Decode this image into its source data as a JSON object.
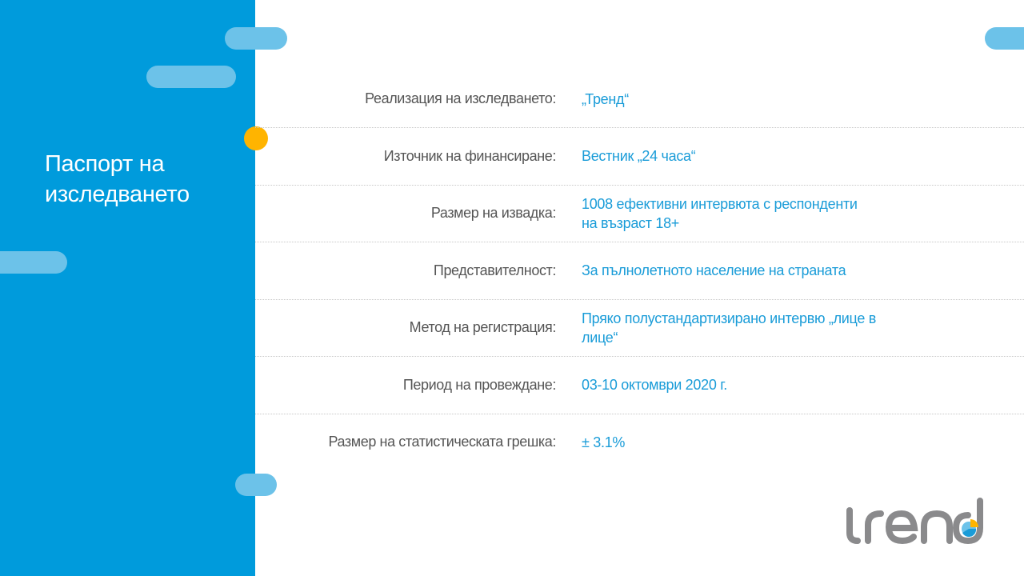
{
  "sidebar": {
    "title": "Паспорт на изследването"
  },
  "colors": {
    "panel": "#009bdc",
    "pill": "#6cc2e9",
    "accent": "#ffb400",
    "value_text": "#1a9cd8"
  },
  "rows": [
    {
      "label": "Реализация на изследването:",
      "value": "„Тренд“"
    },
    {
      "label": "Източник на финансиране:",
      "value": "Вестник „24 часа“"
    },
    {
      "label": "Размер на извадка:",
      "value": "1008 ефективни интервюта с респонденти\n на възраст 18+"
    },
    {
      "label": "Представителност:",
      "value": "За пълнолетното население на страната"
    },
    {
      "label": "Метод на регистрация:",
      "value": "Пряко полустандартизирано интервю „лице в лице“"
    },
    {
      "label": "Период на провеждане:",
      "value": "03-10  октомври 2020 г."
    },
    {
      "label": "Размер на статистическата грешка:",
      "value": "± 3.1%"
    }
  ],
  "logo": {
    "text": "trend"
  }
}
